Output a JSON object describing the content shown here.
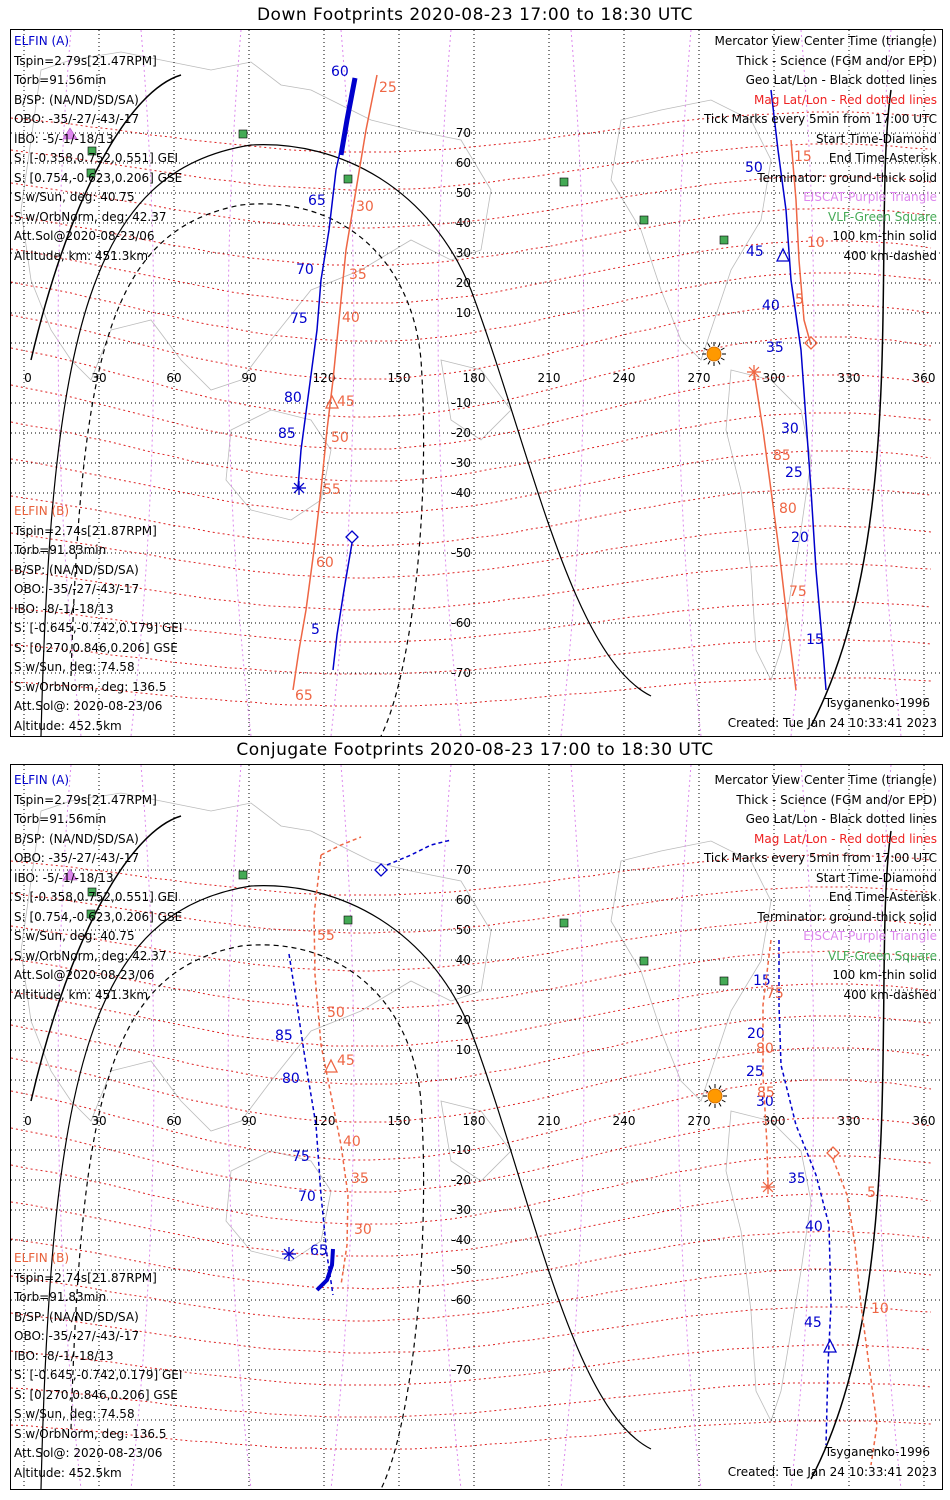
{
  "panels": [
    {
      "title": "Down Footprints 2020-08-23 17:00 to 18:30 UTC",
      "elfin_a": {
        "name": "ELFIN (A)",
        "lines": [
          "Tspin=2.79s[21.47RPM]",
          "Torb=91.56min",
          "B/SP: (NA/ND/SD/SA)",
          "OBO: -35/-27/-43/-17",
          "IBO: -5/-1/-18/13",
          "S: [-0.358,0.752,0.551] GEI",
          "S: [0.754,-0.623,0.206] GSE",
          "S w/Sun, deg: 40.75",
          "S w/OrbNorm, deg: 42.37",
          "Att.Sol@2020-08-23/06",
          "Altitude, km: 451.3km"
        ]
      },
      "elfin_b": {
        "name": "ELFIN (B)",
        "lines": [
          "Tspin=2.74s[21.87RPM]",
          "Torb=91.83min",
          "B/SP: (NA/ND/SD/SA)",
          "OBO: -35/-27/-43/-17",
          "IBO: -8/-1/-18/13",
          "S: [-0.645,-0.742,0.179] GEI",
          "S: [0.270,0.846,0.206] GSE",
          "S w/Sun, deg: 74.58",
          "S w/OrbNorm, deg: 136.5",
          "Att.Sol@: 2020-08-23/06",
          "Altitude: 452.5km"
        ]
      },
      "legend": {
        "l1": "Mercator View Center Time (triangle)",
        "l2": "Thick - Science (FGM and/or EPD)",
        "l3": "Geo Lat/Lon - Black dotted lines",
        "l4": "Mag Lat/Lon - Red dotted lines",
        "l5": "Tick Marks every 5min from 17:00 UTC",
        "l6": "Start Time-Diamond",
        "l7": "End Time-Asterisk",
        "l8": "Terminator: ground-thick solid",
        "l9": "EISCAT-Purple Triangle",
        "l10": "VLF-Green Square",
        "l11": "100 km-thin solid",
        "l12": "400 km-dashed"
      },
      "model": "Tsyganenko-1996",
      "created": "Created: Tue Jan 24 10:33:41 2023"
    },
    {
      "title": "Conjugate Footprints 2020-08-23 17:00 to 18:30 UTC",
      "elfin_a": {
        "name": "ELFIN (A)",
        "lines": [
          "Tspin=2.79s[21.47RPM]",
          "Torb=91.56min",
          "B/SP: (NA/ND/SD/SA)",
          "OBO: -35/-27/-43/-17",
          "IBO: -5/-1/-18/13",
          "S: [-0.358,0.752,0.551] GEI",
          "S: [0.754,-0.623,0.206] GSE",
          "S w/Sun, deg: 40.75",
          "S w/OrbNorm, deg: 42.37",
          "Att.Sol@2020-08-23/06",
          "Altitude, km: 451.3km"
        ]
      },
      "elfin_b": {
        "name": "ELFIN (B)",
        "lines": [
          "Tspin=2.74s[21.87RPM]",
          "Torb=91.83min",
          "B/SP: (NA/ND/SD/SA)",
          "OBO: -35/-27/-43/-17",
          "IBO: -8/-1/-18/13",
          "S: [-0.645,-0.742,0.179] GEI",
          "S: [0.270,0.846,0.206] GSE",
          "S w/Sun, deg: 74.58",
          "S w/OrbNorm, deg: 136.5",
          "Att.Sol@: 2020-08-23/06",
          "Altitude: 452.5km"
        ]
      },
      "legend": {
        "l1": "Mercator View Center Time (triangle)",
        "l2": "Thick - Science (FGM and/or EPD)",
        "l3": "Geo Lat/Lon - Black dotted lines",
        "l4": "Mag Lat/Lon - Red dotted lines",
        "l5": "Tick Marks every 5min from 17:00 UTC",
        "l6": "Start Time-Diamond",
        "l7": "End Time-Asterisk",
        "l8": "Terminator: ground-thick solid",
        "l9": "EISCAT-Purple Triangle",
        "l10": "VLF-Green Square",
        "l11": "100 km-thin solid",
        "l12": "400 km-dashed"
      },
      "model": "Tsyganenko-1996",
      "created": "Created: Tue Jan 24 10:33:41 2023"
    }
  ],
  "map": {
    "lon_ticks": [
      "0",
      "30",
      "60",
      "90",
      "120",
      "150",
      "180",
      "210",
      "240",
      "270",
      "300",
      "330",
      "360"
    ],
    "lat_ticks": [
      "70",
      "60",
      "50",
      "40",
      "30",
      "20",
      "10",
      "-10",
      "-20",
      "-30",
      "-40",
      "-50",
      "-60",
      "-70"
    ],
    "colors": {
      "elfin_a": "#0000cc",
      "elfin_b": "#ee6644",
      "mag_grid": "#dd2222",
      "geo_grid": "#000000",
      "vlf": "#44aa55",
      "eiscat": "#dd88ee",
      "sun": "#ff9900"
    }
  },
  "tracks": {
    "down_a_ticks": [
      "60",
      "65",
      "70",
      "75",
      "80",
      "85",
      "50",
      "45",
      "40",
      "35",
      "30",
      "25",
      "20",
      "15",
      "5"
    ],
    "down_b_ticks": [
      "25",
      "30",
      "35",
      "40",
      "45",
      "50",
      "55",
      "60",
      "65",
      "15",
      "10",
      "5",
      "85",
      "80",
      "75"
    ],
    "conj_a_ticks": [
      "85",
      "80",
      "75",
      "70",
      "65",
      "15",
      "20",
      "25",
      "30",
      "35",
      "40",
      "45"
    ],
    "conj_b_ticks": [
      "55",
      "50",
      "45",
      "40",
      "35",
      "30",
      "75",
      "80",
      "85",
      "5",
      "10"
    ]
  }
}
